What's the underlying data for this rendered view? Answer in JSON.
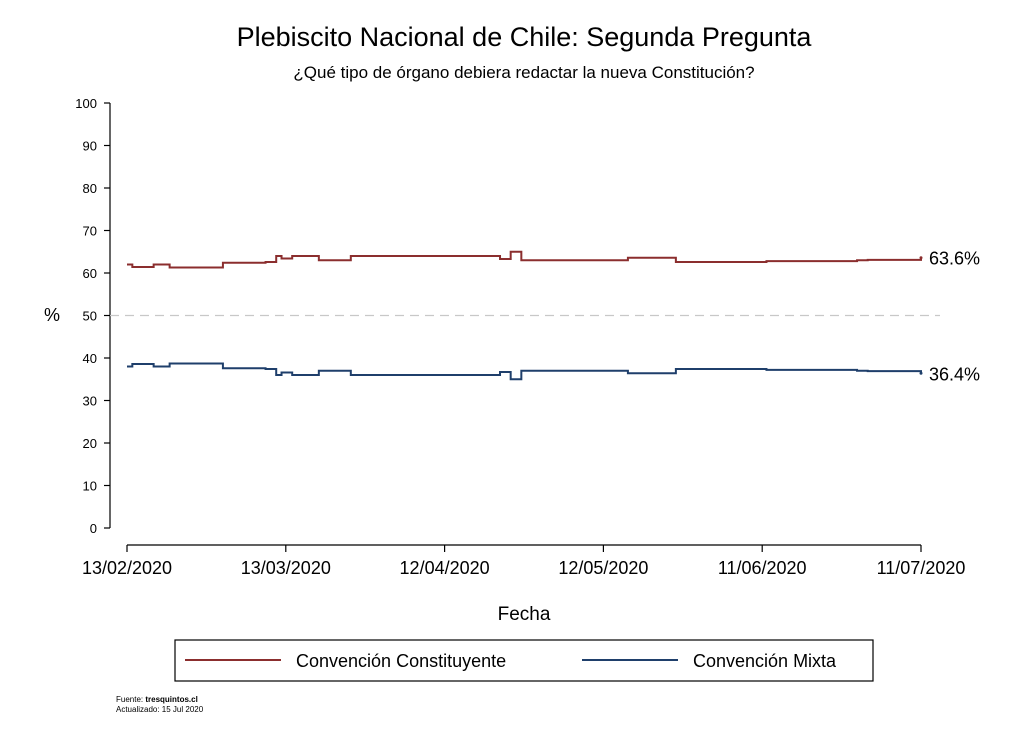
{
  "chart_data": {
    "type": "line",
    "title": "Plebiscito Nacional de Chile: Segunda Pregunta",
    "subtitle": "¿Qué tipo de órgano debiera redactar la nueva Constitución?",
    "xlabel": "Fecha",
    "ylabel": "%",
    "ylim": [
      0,
      100
    ],
    "yticks": [
      0,
      10,
      20,
      30,
      40,
      50,
      60,
      70,
      80,
      90,
      100
    ],
    "xlim": [
      "2020-02-13",
      "2020-07-11"
    ],
    "xticks": [
      "13/02/2020",
      "13/03/2020",
      "12/04/2020",
      "12/05/2020",
      "11/06/2020",
      "11/07/2020"
    ],
    "reference_line": 50,
    "grid": false,
    "step": true,
    "series": [
      {
        "name": "Convención Constituyente",
        "color": "#8b2e2e",
        "end_label": "63.6%",
        "x": [
          "2020-02-13",
          "2020-02-14",
          "2020-02-18",
          "2020-02-21",
          "2020-03-02",
          "2020-03-10",
          "2020-03-12",
          "2020-03-13",
          "2020-03-15",
          "2020-03-20",
          "2020-03-26",
          "2020-04-23",
          "2020-04-25",
          "2020-04-27",
          "2020-05-17",
          "2020-05-26",
          "2020-06-01",
          "2020-06-05",
          "2020-06-12",
          "2020-06-21",
          "2020-06-29",
          "2020-07-01",
          "2020-07-11"
        ],
        "values": [
          62.0,
          61.4,
          62.0,
          61.3,
          62.4,
          62.6,
          64.0,
          63.4,
          64.0,
          63.0,
          64.0,
          63.3,
          65.0,
          63.0,
          63.6,
          62.6,
          62.6,
          62.6,
          62.8,
          62.8,
          63.0,
          63.1,
          63.6
        ]
      },
      {
        "name": "Convención Mixta",
        "color": "#1f3f6b",
        "end_label": "36.4%",
        "x": [
          "2020-02-13",
          "2020-02-14",
          "2020-02-18",
          "2020-02-21",
          "2020-03-02",
          "2020-03-10",
          "2020-03-12",
          "2020-03-13",
          "2020-03-15",
          "2020-03-20",
          "2020-03-26",
          "2020-04-23",
          "2020-04-25",
          "2020-04-27",
          "2020-05-17",
          "2020-05-26",
          "2020-06-01",
          "2020-06-05",
          "2020-06-12",
          "2020-06-21",
          "2020-06-29",
          "2020-07-01",
          "2020-07-11"
        ],
        "values": [
          38.0,
          38.6,
          38.0,
          38.7,
          37.6,
          37.4,
          36.0,
          36.6,
          36.0,
          37.0,
          36.0,
          36.7,
          35.0,
          37.0,
          36.4,
          37.4,
          37.4,
          37.4,
          37.2,
          37.2,
          37.0,
          36.9,
          36.4
        ]
      }
    ],
    "legend": {
      "placement": "bottom",
      "entries": [
        "Convención Constituyente",
        "Convención Mixta"
      ]
    }
  },
  "source": {
    "prefix": "Fuente: ",
    "name": "tresquintos.cl",
    "updated": "Actualizado: 15 Jul 2020"
  }
}
